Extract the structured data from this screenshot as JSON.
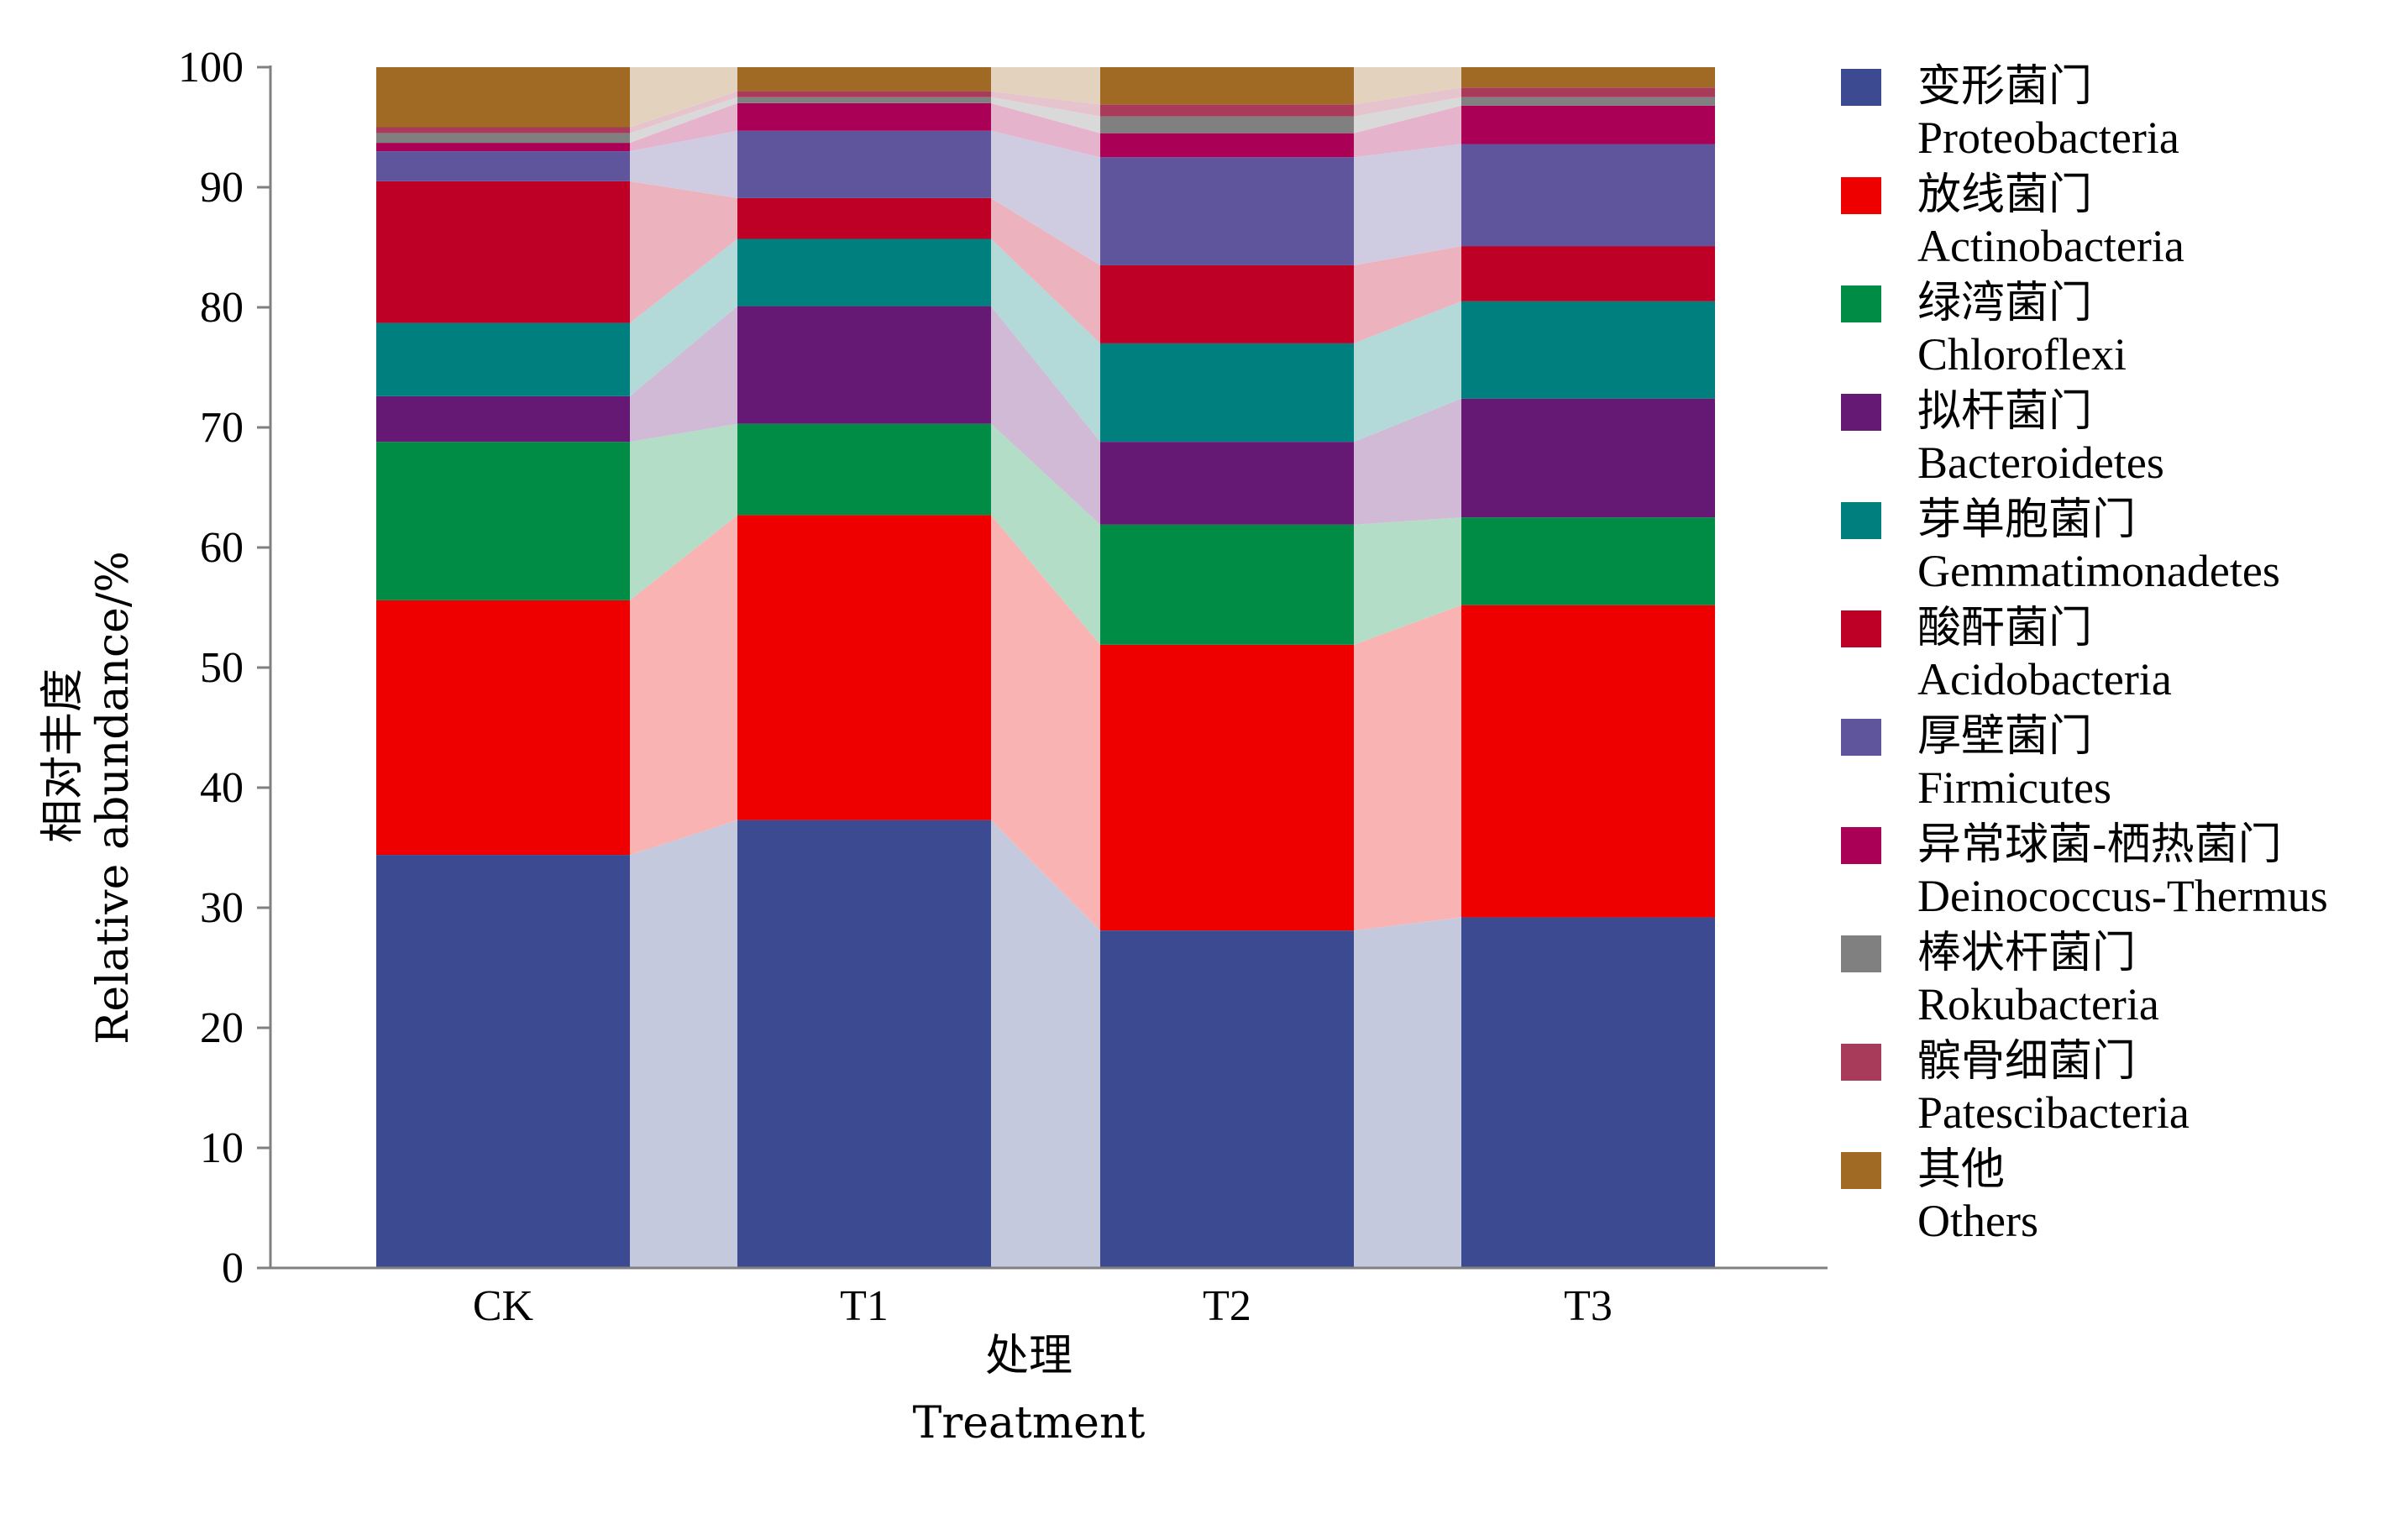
{
  "chart_data": {
    "type": "bar",
    "stacked": true,
    "percent_stacked": true,
    "categories": [
      "CK",
      "T1",
      "T2",
      "T3"
    ],
    "xlabel_cn": "处理",
    "xlabel_en": "Treatment",
    "ylabel_cn": "相对丰度",
    "ylabel_en": "Relative abundance/%",
    "ylim": [
      0,
      100
    ],
    "yticks": [
      0,
      10,
      20,
      30,
      40,
      50,
      60,
      70,
      80,
      90,
      100
    ],
    "connector_bands": true,
    "legend_position": "right",
    "series": [
      {
        "name_cn": "变形菌门",
        "name_en": "Proteobacteria",
        "color": "#3b4a91",
        "values": [
          34.4,
          37.3,
          28.1,
          29.2
        ]
      },
      {
        "name_cn": "放线菌门",
        "name_en": "Actinobacteria",
        "color": "#ee0000",
        "values": [
          21.2,
          25.4,
          23.8,
          26.0
        ]
      },
      {
        "name_cn": "绿湾菌门",
        "name_en": "Chloroflexi",
        "color": "#008c45",
        "values": [
          13.2,
          7.6,
          10.0,
          7.3
        ]
      },
      {
        "name_cn": "拟杆菌门",
        "name_en": "Bacteroidetes",
        "color": "#651874",
        "values": [
          3.8,
          9.8,
          6.9,
          9.9
        ]
      },
      {
        "name_cn": "芽单胞菌门",
        "name_en": "Gemmatimonadetes",
        "color": "#007f7f",
        "values": [
          6.1,
          5.6,
          8.2,
          8.1
        ]
      },
      {
        "name_cn": "酸酐菌门",
        "name_en": "Acidobacteria",
        "color": "#be0026",
        "values": [
          11.8,
          3.4,
          6.5,
          4.6
        ]
      },
      {
        "name_cn": "厚壁菌门",
        "name_en": "Firmicutes",
        "color": "#5e559c",
        "values": [
          2.5,
          5.6,
          9.0,
          8.5
        ]
      },
      {
        "name_cn": "异常球菌-栖热菌门",
        "name_en": "Deinococcus-Thermus",
        "color": "#aa0055",
        "values": [
          0.7,
          2.3,
          2.0,
          3.2
        ]
      },
      {
        "name_cn": "棒状杆菌门",
        "name_en": "Rokubacteria",
        "color": "#808080",
        "values": [
          0.8,
          0.5,
          1.4,
          0.7
        ]
      },
      {
        "name_cn": "髌骨细菌门",
        "name_en": "Patescibacteria",
        "color": "#a83a5a",
        "values": [
          0.5,
          0.5,
          1.0,
          0.8
        ]
      },
      {
        "name_cn": "其他",
        "name_en": "Others",
        "color": "#a06a25",
        "values": [
          5.0,
          2.0,
          3.1,
          1.7
        ]
      }
    ]
  }
}
